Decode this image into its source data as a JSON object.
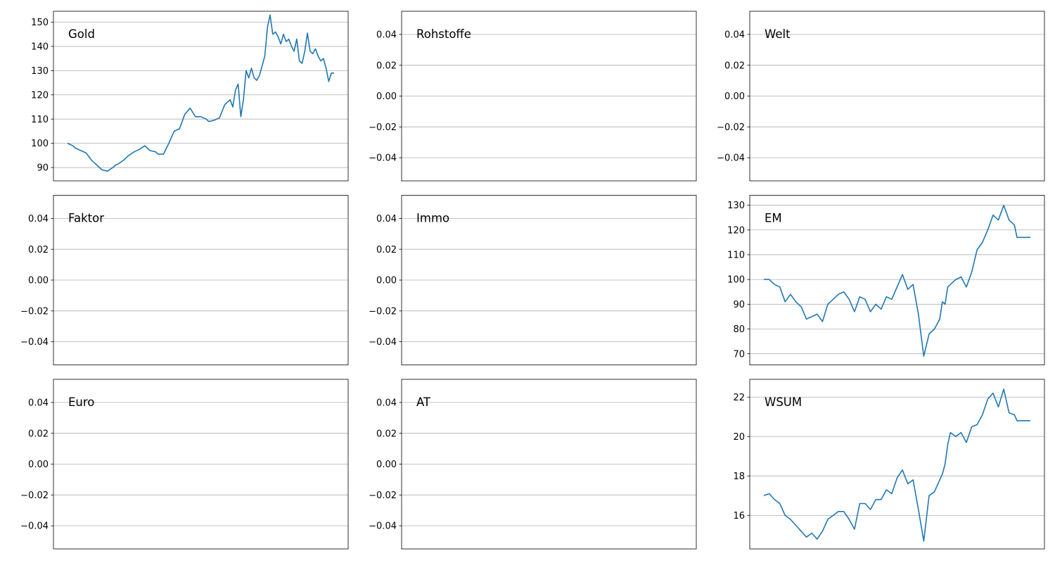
{
  "colors": {
    "line": "#1f77b4",
    "grid": "#b0b0b0",
    "frame": "#000000",
    "background": "#ffffff"
  },
  "chart_data": [
    {
      "type": "line",
      "title": "Gold",
      "grid": "horizontal",
      "ylim": [
        84.5,
        154.5
      ],
      "yticks": [
        90,
        100,
        110,
        120,
        130,
        140,
        150
      ],
      "ytick_labels": [
        "90",
        "100",
        "110",
        "120",
        "130",
        "140",
        "150"
      ],
      "series": [
        {
          "x": [
            0,
            0.02,
            0.03,
            0.05,
            0.07,
            0.09,
            0.11,
            0.13,
            0.15,
            0.17,
            0.18,
            0.19,
            0.21,
            0.23,
            0.25,
            0.27,
            0.29,
            0.31,
            0.33,
            0.34,
            0.36,
            0.38,
            0.4,
            0.42,
            0.44,
            0.46,
            0.48,
            0.5,
            0.52,
            0.53,
            0.55,
            0.57,
            0.59,
            0.6,
            0.61,
            0.62,
            0.63,
            0.64,
            0.65,
            0.66,
            0.67,
            0.68,
            0.69,
            0.7,
            0.71,
            0.72,
            0.73,
            0.74,
            0.75,
            0.76,
            0.77,
            0.78,
            0.79,
            0.8,
            0.81,
            0.82,
            0.83,
            0.84,
            0.85,
            0.86,
            0.87,
            0.88,
            0.89,
            0.9,
            0.91,
            0.92,
            0.93,
            0.94,
            0.95,
            0.96,
            0.97,
            0.98,
            0.99,
            1.0
          ],
          "y": [
            100,
            99,
            98,
            97,
            96,
            93,
            91,
            89,
            88.5,
            90,
            91,
            91.5,
            93,
            95,
            96.5,
            97.5,
            99,
            97,
            96.5,
            95.5,
            95.5,
            100,
            105,
            106,
            112,
            114.5,
            111,
            111,
            110,
            109,
            109.5,
            110.5,
            116,
            117,
            118,
            115,
            122,
            124.5,
            111,
            118,
            130,
            127,
            131,
            127,
            126,
            128,
            132,
            136,
            148,
            153,
            145,
            146,
            144,
            141,
            145,
            142,
            143,
            140,
            138,
            143,
            134,
            133,
            138,
            145.5,
            138,
            137,
            139,
            136,
            134,
            135,
            131,
            125.5,
            129,
            129
          ]
        }
      ]
    },
    {
      "type": "line",
      "title": "Rohstoffe",
      "grid": "horizontal",
      "ylim": [
        -0.055,
        0.055
      ],
      "yticks": [
        -0.04,
        -0.02,
        0,
        0.02,
        0.04
      ],
      "ytick_labels": [
        "−0.04",
        "−0.02",
        "0.00",
        "0.02",
        "0.04"
      ],
      "series": []
    },
    {
      "type": "line",
      "title": "Welt",
      "grid": "horizontal",
      "ylim": [
        -0.055,
        0.055
      ],
      "yticks": [
        -0.04,
        -0.02,
        0,
        0.02,
        0.04
      ],
      "ytick_labels": [
        "−0.04",
        "−0.02",
        "0.00",
        "0.02",
        "0.04"
      ],
      "series": []
    },
    {
      "type": "line",
      "title": "Faktor",
      "grid": "horizontal",
      "ylim": [
        -0.055,
        0.055
      ],
      "yticks": [
        -0.04,
        -0.02,
        0,
        0.02,
        0.04
      ],
      "ytick_labels": [
        "−0.04",
        "−0.02",
        "0.00",
        "0.02",
        "0.04"
      ],
      "series": []
    },
    {
      "type": "line",
      "title": "Immo",
      "grid": "horizontal",
      "ylim": [
        -0.055,
        0.055
      ],
      "yticks": [
        -0.04,
        -0.02,
        0,
        0.02,
        0.04
      ],
      "ytick_labels": [
        "−0.04",
        "−0.02",
        "0.00",
        "0.02",
        "0.04"
      ],
      "series": []
    },
    {
      "type": "line",
      "title": "EM",
      "grid": "horizontal",
      "ylim": [
        65.5,
        134
      ],
      "yticks": [
        70,
        80,
        90,
        100,
        110,
        120,
        130
      ],
      "ytick_labels": [
        "70",
        "80",
        "90",
        "100",
        "110",
        "120",
        "130"
      ],
      "series": [
        {
          "x": [
            0,
            0.02,
            0.04,
            0.06,
            0.08,
            0.1,
            0.12,
            0.14,
            0.16,
            0.18,
            0.2,
            0.22,
            0.24,
            0.26,
            0.28,
            0.3,
            0.32,
            0.34,
            0.36,
            0.38,
            0.4,
            0.42,
            0.44,
            0.46,
            0.48,
            0.5,
            0.52,
            0.54,
            0.56,
            0.58,
            0.6,
            0.62,
            0.64,
            0.66,
            0.67,
            0.68,
            0.69,
            0.7,
            0.72,
            0.74,
            0.76,
            0.78,
            0.8,
            0.82,
            0.84,
            0.86,
            0.88,
            0.9,
            0.92,
            0.94,
            0.95,
            0.96,
            0.97,
            0.98,
            0.99,
            1.0
          ],
          "y": [
            100,
            100,
            98,
            97,
            91,
            94,
            91,
            89,
            84,
            85,
            86,
            83,
            90,
            92,
            94,
            95,
            92,
            87,
            93,
            92,
            87,
            90,
            88,
            93,
            92,
            97,
            102,
            96,
            98,
            86,
            69,
            78,
            80,
            84,
            91,
            90,
            97,
            98,
            100,
            101,
            97,
            103,
            112,
            115,
            120,
            126,
            124,
            130,
            124,
            122,
            117,
            117,
            117,
            117,
            117,
            117
          ]
        }
      ]
    },
    {
      "type": "line",
      "title": "Euro",
      "grid": "horizontal",
      "ylim": [
        -0.055,
        0.055
      ],
      "yticks": [
        -0.04,
        -0.02,
        0,
        0.02,
        0.04
      ],
      "ytick_labels": [
        "−0.04",
        "−0.02",
        "0.00",
        "0.02",
        "0.04"
      ],
      "series": []
    },
    {
      "type": "line",
      "title": "AT",
      "grid": "horizontal",
      "ylim": [
        -0.055,
        0.055
      ],
      "yticks": [
        -0.04,
        -0.02,
        0,
        0.02,
        0.04
      ],
      "ytick_labels": [
        "−0.04",
        "−0.02",
        "0.00",
        "0.02",
        "0.04"
      ],
      "series": []
    },
    {
      "type": "line",
      "title": "WSUM",
      "grid": "horizontal",
      "ylim": [
        14.3,
        22.9
      ],
      "yticks": [
        16,
        18,
        20,
        22
      ],
      "ytick_labels": [
        "16",
        "18",
        "20",
        "22"
      ],
      "series": [
        {
          "x": [
            0,
            0.02,
            0.04,
            0.06,
            0.08,
            0.1,
            0.12,
            0.14,
            0.16,
            0.18,
            0.2,
            0.22,
            0.24,
            0.26,
            0.28,
            0.3,
            0.32,
            0.34,
            0.36,
            0.38,
            0.4,
            0.42,
            0.44,
            0.46,
            0.48,
            0.5,
            0.52,
            0.54,
            0.56,
            0.58,
            0.6,
            0.62,
            0.64,
            0.66,
            0.67,
            0.68,
            0.69,
            0.7,
            0.72,
            0.74,
            0.76,
            0.78,
            0.8,
            0.82,
            0.84,
            0.86,
            0.88,
            0.9,
            0.92,
            0.94,
            0.95,
            0.96,
            0.97,
            0.98,
            0.99,
            1.0
          ],
          "y": [
            17,
            17.1,
            16.8,
            16.6,
            16,
            15.8,
            15.5,
            15.2,
            14.9,
            15.1,
            14.8,
            15.2,
            15.8,
            16,
            16.2,
            16.2,
            15.8,
            15.3,
            16.6,
            16.6,
            16.3,
            16.8,
            16.8,
            17.3,
            17.1,
            17.9,
            18.3,
            17.6,
            17.8,
            16.3,
            14.7,
            17,
            17.2,
            17.8,
            18.1,
            18.6,
            19.6,
            20.2,
            20,
            20.2,
            19.7,
            20.5,
            20.6,
            21.1,
            21.9,
            22.2,
            21.5,
            22.4,
            21.2,
            21.1,
            20.8,
            20.8,
            20.8,
            20.8,
            20.8,
            20.8
          ]
        }
      ]
    }
  ]
}
